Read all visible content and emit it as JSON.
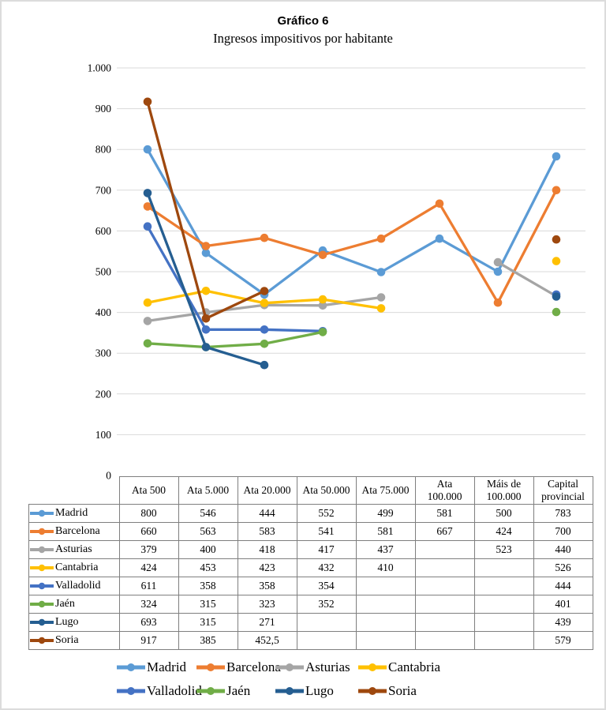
{
  "title": "Gráfico 6",
  "subtitle": "Ingresos impositivos por habitante",
  "chart_data": {
    "type": "line",
    "title": "Gráfico 6",
    "subtitle": "Ingresos impositivos por habitante",
    "categories": [
      "Ata 500",
      "Ata 5.000",
      "Ata 20.000",
      "Ata 50.000",
      "Ata 75.000",
      "Ata 100.000",
      "Máis de 100.000",
      "Capital provincial"
    ],
    "series": [
      {
        "name": "Madrid",
        "color": "#5B9BD5",
        "values": [
          800,
          546,
          444,
          552,
          499,
          581,
          500,
          783
        ]
      },
      {
        "name": "Barcelona",
        "color": "#ED7D31",
        "values": [
          660,
          563,
          583,
          541,
          581,
          667,
          424,
          700
        ]
      },
      {
        "name": "Asturias",
        "color": "#A5A5A5",
        "values": [
          379,
          400,
          418,
          417,
          437,
          null,
          523,
          440
        ]
      },
      {
        "name": "Cantabria",
        "color": "#FFC000",
        "values": [
          424,
          453,
          423,
          432,
          410,
          null,
          null,
          526
        ]
      },
      {
        "name": "Valladolid",
        "color": "#4472C4",
        "values": [
          611,
          358,
          358,
          354,
          null,
          null,
          null,
          444
        ]
      },
      {
        "name": "Jaén",
        "color": "#70AD47",
        "values": [
          324,
          315,
          323,
          352,
          null,
          null,
          null,
          401
        ]
      },
      {
        "name": "Lugo",
        "color": "#255E91",
        "values": [
          693,
          315,
          271,
          null,
          null,
          null,
          null,
          439
        ]
      },
      {
        "name": "Soria",
        "color": "#9E480E",
        "values": [
          917,
          385,
          452.5,
          null,
          null,
          null,
          null,
          579
        ]
      }
    ],
    "ylim": [
      0,
      1000
    ],
    "ytick_labels": [
      "0",
      "100",
      "200",
      "300",
      "400",
      "500",
      "600",
      "700",
      "800",
      "900",
      "1.000"
    ],
    "grid": true,
    "gridline_color": "#D9D9D9",
    "marker": "circle",
    "legend_position": "bottom"
  },
  "table": {
    "corner": "",
    "col_headers": [
      "Ata 500",
      "Ata 5.000",
      "Ata 20.000",
      "Ata 50.000",
      "Ata 75.000",
      "Ata\n100.000",
      "Máis de\n100.000",
      "Capital\nprovincial"
    ],
    "rows": [
      [
        "800",
        "546",
        "444",
        "552",
        "499",
        "581",
        "500",
        "783"
      ],
      [
        "660",
        "563",
        "583",
        "541",
        "581",
        "667",
        "424",
        "700"
      ],
      [
        "379",
        "400",
        "418",
        "417",
        "437",
        "",
        "523",
        "440"
      ],
      [
        "424",
        "453",
        "423",
        "432",
        "410",
        "",
        "",
        "526"
      ],
      [
        "611",
        "358",
        "358",
        "354",
        "",
        "",
        "",
        "444"
      ],
      [
        "324",
        "315",
        "323",
        "352",
        "",
        "",
        "",
        "401"
      ],
      [
        "693",
        "315",
        "271",
        "",
        "",
        "",
        "",
        "439"
      ],
      [
        "917",
        "385",
        "452,5",
        "",
        "",
        "",
        "",
        "579"
      ]
    ]
  }
}
